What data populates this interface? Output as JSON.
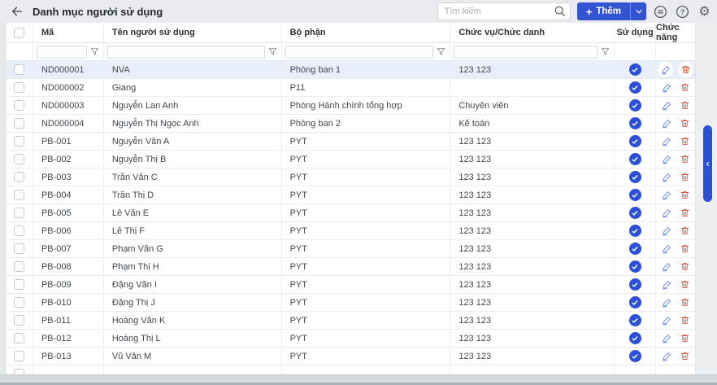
{
  "topbar": {
    "title": "Danh mục người sử dụng",
    "search_placeholder": "Tìm kiếm",
    "add_plus": "+",
    "add_label": "Thêm",
    "icon_buttons": [
      "feedback-icon",
      "help-icon",
      "settings-icon"
    ]
  },
  "icons": {
    "back": "arrow-left",
    "search": "magnifier",
    "filter": "funnel",
    "active": "check-circle",
    "edit": "pencil",
    "delete": "trash",
    "settings_glyph": "⚙",
    "help_glyph": "?",
    "collapse_tab": "chevron-left"
  },
  "colors": {
    "accent": "#3253d2",
    "check_badge": "#2b4fd7",
    "edit_icon": "#7b93e0",
    "delete_icon": "#e2563d",
    "selected_row": "#e9eefb",
    "topbar_bg": "#e9ebee"
  },
  "table": {
    "selected_row": 0,
    "columns": [
      {
        "key": "code",
        "label": "Mã",
        "filterable": true
      },
      {
        "key": "name",
        "label": "Tên người sử dụng",
        "filterable": true
      },
      {
        "key": "dept",
        "label": "Bộ phận",
        "filterable": true
      },
      {
        "key": "title",
        "label": "Chức vụ/Chức danh",
        "filterable": true
      },
      {
        "key": "active",
        "label": "Sử dụng",
        "filterable": false
      },
      {
        "key": "actions",
        "label": "Chức năng",
        "filterable": false
      }
    ],
    "filters": {
      "code": "",
      "name": "",
      "dept": "",
      "title": ""
    },
    "rows": [
      {
        "code": "ND000001",
        "name": "NVA",
        "dept": "Phòng ban 1",
        "title": "123 123",
        "active": true
      },
      {
        "code": "ND000002",
        "name": "Giang",
        "dept": "P11",
        "title": "",
        "active": true
      },
      {
        "code": "ND000003",
        "name": "Nguyễn Lan Anh",
        "dept": "Phòng Hành chính tổng hợp",
        "title": "Chuyên viên",
        "active": true
      },
      {
        "code": "ND000004",
        "name": "Nguyễn Thị Ngọc Anh",
        "dept": "Phòng ban 2",
        "title": "Kế toán",
        "active": true
      },
      {
        "code": "PB-001",
        "name": "Nguyễn Văn A",
        "dept": "PYT",
        "title": "123 123",
        "active": true
      },
      {
        "code": "PB-002",
        "name": "Nguyễn Thị B",
        "dept": "PYT",
        "title": "123 123",
        "active": true
      },
      {
        "code": "PB-003",
        "name": "Trần Văn C",
        "dept": "PYT",
        "title": "123 123",
        "active": true
      },
      {
        "code": "PB-004",
        "name": "Trần Thị D",
        "dept": "PYT",
        "title": "123 123",
        "active": true
      },
      {
        "code": "PB-005",
        "name": "Lê Văn E",
        "dept": "PYT",
        "title": "123 123",
        "active": true
      },
      {
        "code": "PB-006",
        "name": "Lê Thị F",
        "dept": "PYT",
        "title": "123 123",
        "active": true
      },
      {
        "code": "PB-007",
        "name": "Phạm Văn G",
        "dept": "PYT",
        "title": "123 123",
        "active": true
      },
      {
        "code": "PB-008",
        "name": "Phạm Thị H",
        "dept": "PYT",
        "title": "123 123",
        "active": true
      },
      {
        "code": "PB-009",
        "name": "Đặng Văn I",
        "dept": "PYT",
        "title": "123 123",
        "active": true
      },
      {
        "code": "PB-010",
        "name": "Đặng Thị J",
        "dept": "PYT",
        "title": "123 123",
        "active": true
      },
      {
        "code": "PB-011",
        "name": "Hoàng Văn K",
        "dept": "PYT",
        "title": "123 123",
        "active": true
      },
      {
        "code": "PB-012",
        "name": "Hoàng Thị L",
        "dept": "PYT",
        "title": "123 123",
        "active": true
      },
      {
        "code": "PB-013",
        "name": "Vũ Văn M",
        "dept": "PYT",
        "title": "123 123",
        "active": true
      },
      {
        "code": "",
        "name": "",
        "dept": "",
        "title": "",
        "active": false,
        "partial": true
      }
    ]
  }
}
